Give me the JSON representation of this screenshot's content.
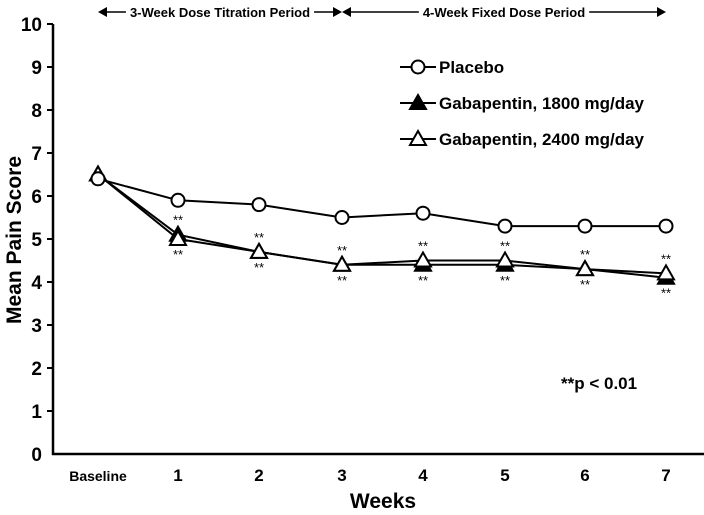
{
  "chart_data": {
    "type": "line",
    "title": "",
    "xlabel": "Weeks",
    "ylabel": "Mean Pain Score",
    "ylim": [
      0,
      10
    ],
    "yticks": [
      "0",
      "1",
      "2",
      "3",
      "4",
      "5",
      "6",
      "7",
      "8",
      "9",
      "10"
    ],
    "categories": [
      "Baseline",
      "1",
      "2",
      "3",
      "4",
      "5",
      "6",
      "7"
    ],
    "grid": false,
    "legend_position": "top-right",
    "series": [
      {
        "name": "Placebo",
        "marker": "open-circle",
        "values": [
          6.4,
          5.9,
          5.8,
          5.5,
          5.6,
          5.3,
          5.3,
          5.3
        ]
      },
      {
        "name": "Gabapentin, 1800 mg/day",
        "marker": "filled-triangle",
        "values": [
          6.5,
          5.1,
          4.7,
          4.4,
          4.4,
          4.4,
          4.3,
          4.1
        ]
      },
      {
        "name": "Gabapentin, 2400 mg/day",
        "marker": "open-triangle",
        "values": [
          6.5,
          5.0,
          4.7,
          4.4,
          4.5,
          4.5,
          4.3,
          4.2
        ]
      }
    ],
    "significance_marks": {
      "label": "**",
      "above_series": "Gabapentin, 2400 mg/day",
      "below_series": "Gabapentin, 1800 mg/day",
      "categories": [
        "1",
        "2",
        "3",
        "4",
        "5",
        "6",
        "7"
      ]
    },
    "annotations": {
      "periods": [
        {
          "label": "3-Week Dose Titration Period",
          "from": "Baseline",
          "to": "3"
        },
        {
          "label": "4-Week Fixed Dose Period",
          "from": "3",
          "to": "7"
        }
      ],
      "p_note": "**p < 0.01"
    }
  }
}
